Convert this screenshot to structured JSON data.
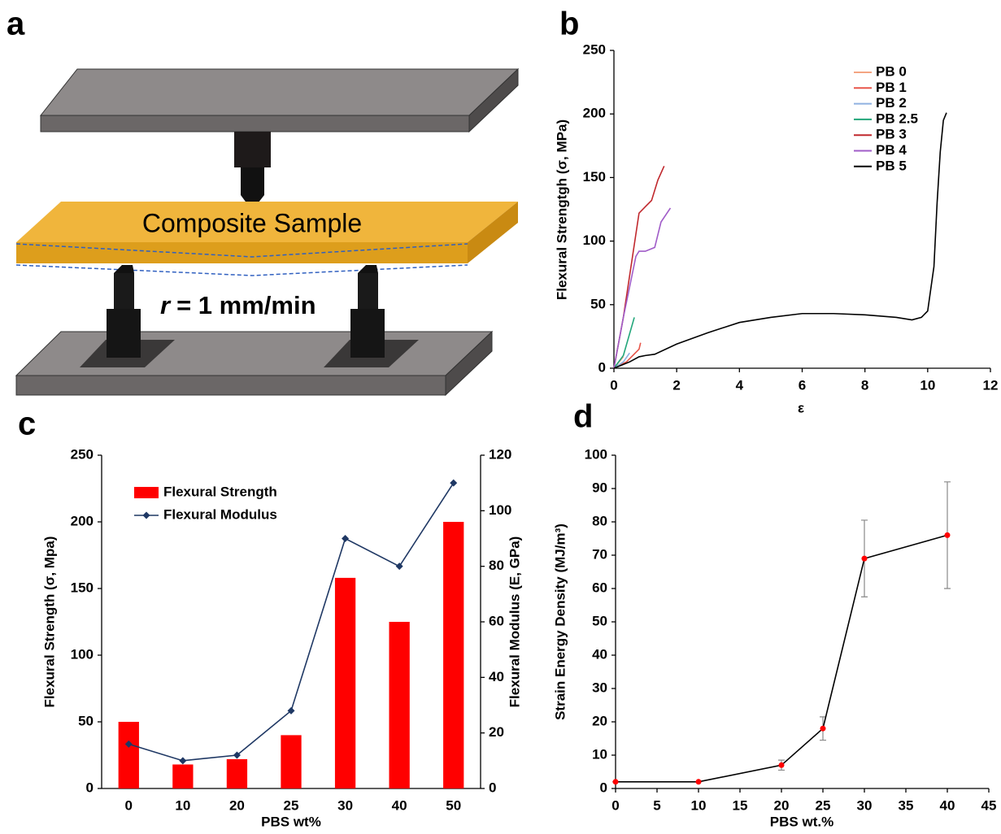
{
  "diagram": {
    "panel_label": "a",
    "sample_label": "Composite Sample",
    "rate_symbol": "r",
    "rate_text": "= 1 mm/min"
  },
  "chart_data": [
    {
      "type": "line",
      "panel_label": "b",
      "x_label": "ε",
      "y_label": "Flexural Strengtgh (σ, MPa)",
      "xlim": [
        0,
        12
      ],
      "xticks": [
        0,
        2,
        4,
        6,
        8,
        10,
        12
      ],
      "ylim": [
        0,
        250
      ],
      "yticks": [
        0,
        50,
        100,
        150,
        200,
        250
      ],
      "legend": "upper right",
      "series": [
        {
          "name": "PB 0",
          "color": "#f4a582",
          "x": [
            0,
            0.1,
            0.2,
            0.3
          ],
          "values": [
            0,
            3,
            6,
            9
          ]
        },
        {
          "name": "PB 1",
          "color": "#e8564a",
          "x": [
            0,
            0.4,
            0.8,
            0.85
          ],
          "values": [
            0,
            5,
            15,
            20
          ]
        },
        {
          "name": "PB 2",
          "color": "#8fb0e0",
          "x": [
            0,
            0.3,
            0.5
          ],
          "values": [
            0,
            5,
            12
          ]
        },
        {
          "name": "PB 2.5",
          "color": "#22a67a",
          "x": [
            0,
            0.3,
            0.65
          ],
          "values": [
            0,
            10,
            40
          ]
        },
        {
          "name": "PB 3",
          "color": "#c0282d",
          "x": [
            0,
            0.3,
            0.8,
            1.0,
            1.2,
            1.4,
            1.6
          ],
          "values": [
            0,
            40,
            122,
            127,
            132,
            148,
            159
          ]
        },
        {
          "name": "PB 4",
          "color": "#a05cc8",
          "x": [
            0,
            0.3,
            0.7,
            0.8,
            1.0,
            1.3,
            1.5,
            1.8
          ],
          "values": [
            0,
            40,
            88,
            92,
            92,
            95,
            115,
            126
          ]
        },
        {
          "name": "PB 5",
          "color": "#000000",
          "x": [
            0,
            0.2,
            0.5,
            0.8,
            1.0,
            1.3,
            2,
            3,
            4,
            5,
            6,
            7,
            8,
            9,
            9.5,
            9.8,
            10,
            10.2,
            10.3,
            10.4,
            10.5,
            10.6
          ],
          "values": [
            0,
            2,
            5,
            9,
            10,
            11,
            19,
            28,
            36,
            40,
            43,
            43,
            42,
            40,
            38,
            40,
            45,
            80,
            130,
            170,
            195,
            201
          ]
        }
      ]
    },
    {
      "type": "bar",
      "panel_label": "c",
      "x_label": "PBS wt%",
      "y_label": "Flexural Strength (σ, Mpa)",
      "y2_label": "Flexural Modulus (E, GPa)",
      "categories": [
        "0",
        "10",
        "20",
        "25",
        "30",
        "40",
        "50"
      ],
      "ylim": [
        0,
        250
      ],
      "yticks": [
        0,
        50,
        100,
        150,
        200,
        250
      ],
      "y2lim": [
        0,
        120
      ],
      "y2ticks": [
        0,
        20,
        40,
        60,
        80,
        100,
        120
      ],
      "legend": "upper left",
      "series": [
        {
          "name": "Flexural Strength",
          "type": "bar",
          "color": "#ff0000",
          "values": [
            50,
            18,
            22,
            40,
            158,
            125,
            200
          ]
        },
        {
          "name": "Flexural Modulus",
          "type": "line",
          "axis": "y2",
          "color": "#1f3864",
          "values": [
            16,
            10,
            12,
            28,
            90,
            80,
            110
          ]
        }
      ]
    },
    {
      "type": "line",
      "panel_label": "d",
      "x_label": "PBS wt.%",
      "y_label": "Strain Energy Density (MJ/m³)",
      "x": [
        0,
        10,
        20,
        25,
        30,
        40
      ],
      "xlim": [
        0,
        45
      ],
      "xticks": [
        0,
        5,
        10,
        15,
        20,
        25,
        30,
        35,
        40,
        45
      ],
      "ylim": [
        0,
        100
      ],
      "yticks": [
        0,
        10,
        20,
        30,
        40,
        50,
        60,
        70,
        80,
        90,
        100
      ],
      "series": [
        {
          "color": "#000000",
          "marker_color": "#ff0000",
          "values": [
            2,
            2,
            7,
            18,
            69,
            76
          ],
          "errors": [
            0,
            0,
            1.5,
            3.5,
            11.5,
            16
          ]
        }
      ]
    }
  ]
}
